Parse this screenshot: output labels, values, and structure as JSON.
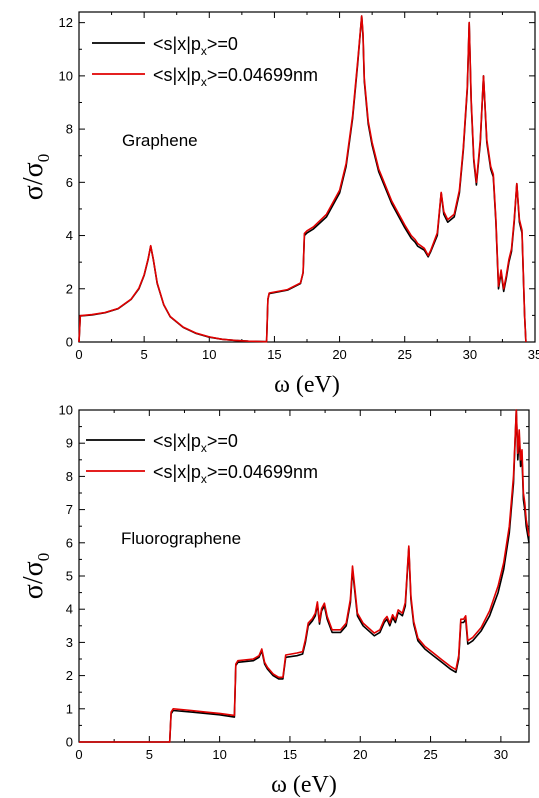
{
  "chart_data": [
    {
      "type": "line",
      "annotation": "Graphene",
      "xlabel": "ω (eV)",
      "ylabel": "σ/σ",
      "ylabel_subscript": "0",
      "xlim": [
        0,
        35
      ],
      "ylim": [
        0,
        12.4
      ],
      "xticks": [
        0,
        5,
        10,
        15,
        20,
        25,
        30,
        35
      ],
      "yticks": [
        0,
        2,
        4,
        6,
        8,
        10,
        12
      ],
      "legend_position": "top-left",
      "grid": false,
      "series": [
        {
          "name": "<s|x|p",
          "name_subscript": "x",
          "name_suffix": ">=0",
          "color": "#000000",
          "x": [
            0,
            0.1,
            1,
            2,
            3,
            4,
            4.6,
            5,
            5.3,
            5.5,
            5.7,
            6,
            6.5,
            7,
            8,
            9,
            10,
            11,
            12,
            13,
            14,
            14.4,
            14.5,
            14.6,
            16,
            17,
            17.2,
            17.3,
            17.5,
            18,
            19,
            20,
            20.5,
            21,
            21.4,
            21.7,
            21.8,
            21.9,
            22.2,
            22.5,
            23,
            24,
            25,
            25.5,
            25.8,
            26,
            26.5,
            26.8,
            27,
            27.5,
            27.8,
            28,
            28.3,
            28.8,
            29.2,
            29.5,
            29.8,
            29.95,
            30.1,
            30.3,
            30.5,
            30.8,
            31.05,
            31.3,
            31.6,
            31.8,
            32.0,
            32.2,
            32.4,
            32.6,
            32.8,
            33.0,
            33.2,
            33.4,
            33.6,
            33.8,
            34.0,
            34.2,
            34.3
          ],
          "y": [
            0,
            0.98,
            1.02,
            1.1,
            1.25,
            1.6,
            2.0,
            2.5,
            3.1,
            3.6,
            3.1,
            2.2,
            1.4,
            0.95,
            0.55,
            0.32,
            0.18,
            0.1,
            0.06,
            0.03,
            0.02,
            0.01,
            1.6,
            1.82,
            1.95,
            2.2,
            2.6,
            4.0,
            4.1,
            4.25,
            4.7,
            5.6,
            6.6,
            8.4,
            10.5,
            12.25,
            11.5,
            9.8,
            8.2,
            7.4,
            6.4,
            5.2,
            4.3,
            3.9,
            3.75,
            3.6,
            3.45,
            3.2,
            3.4,
            4.0,
            5.6,
            4.8,
            4.5,
            4.7,
            5.6,
            7.2,
            9.5,
            12.0,
            9.0,
            6.8,
            5.9,
            7.5,
            10.0,
            7.5,
            6.5,
            6.2,
            4.5,
            2.0,
            2.6,
            1.9,
            2.4,
            3.0,
            3.4,
            4.5,
            5.95,
            4.5,
            4.1,
            1.0,
            0.0
          ]
        },
        {
          "name": "<s|x|p",
          "name_subscript": "x",
          "name_suffix": ">=0.04699nm",
          "color": "#e00000",
          "x": [
            0,
            0.1,
            1,
            2,
            3,
            4,
            4.6,
            5,
            5.3,
            5.5,
            5.7,
            6,
            6.5,
            7,
            8,
            9,
            10,
            11,
            12,
            13,
            14,
            14.4,
            14.5,
            14.6,
            16,
            17,
            17.2,
            17.3,
            17.5,
            18,
            19,
            20,
            20.5,
            21,
            21.4,
            21.7,
            21.8,
            21.9,
            22.2,
            22.5,
            23,
            24,
            25,
            25.5,
            25.8,
            26,
            26.5,
            26.8,
            27,
            27.5,
            27.8,
            28,
            28.3,
            28.8,
            29.2,
            29.5,
            29.8,
            29.95,
            30.1,
            30.3,
            30.5,
            30.8,
            31.05,
            31.3,
            31.6,
            31.8,
            32.0,
            32.2,
            32.4,
            32.6,
            32.8,
            33.0,
            33.2,
            33.4,
            33.6,
            33.8,
            34.0,
            34.2,
            34.3
          ],
          "y": [
            0,
            0.99,
            1.03,
            1.11,
            1.26,
            1.61,
            2.02,
            2.52,
            3.12,
            3.62,
            3.12,
            2.22,
            1.41,
            0.96,
            0.56,
            0.33,
            0.19,
            0.1,
            0.06,
            0.03,
            0.02,
            0.01,
            1.62,
            1.84,
            1.97,
            2.22,
            2.62,
            4.08,
            4.18,
            4.33,
            4.8,
            5.7,
            6.7,
            8.5,
            10.6,
            12.25,
            11.6,
            9.9,
            8.3,
            7.5,
            6.5,
            5.3,
            4.4,
            4.0,
            3.85,
            3.7,
            3.52,
            3.25,
            3.45,
            4.1,
            5.62,
            4.9,
            4.6,
            4.8,
            5.7,
            7.3,
            9.6,
            12.0,
            9.1,
            6.9,
            6.0,
            7.6,
            10.0,
            7.6,
            6.6,
            6.3,
            4.6,
            2.1,
            2.7,
            2.0,
            2.5,
            3.1,
            3.5,
            4.6,
            5.95,
            4.6,
            4.2,
            1.0,
            0.0
          ]
        }
      ]
    },
    {
      "type": "line",
      "annotation": "Fluorographene",
      "xlabel": "ω (eV)",
      "ylabel": "σ/σ",
      "ylabel_subscript": "0",
      "xlim": [
        0,
        32
      ],
      "ylim": [
        0,
        10
      ],
      "xticks": [
        0,
        5,
        10,
        15,
        20,
        25,
        30
      ],
      "yticks": [
        0,
        1,
        2,
        3,
        4,
        5,
        6,
        7,
        8,
        9,
        10
      ],
      "legend_position": "top-left",
      "grid": false,
      "series": [
        {
          "name": "<s|x|p",
          "name_subscript": "x",
          "name_suffix": ">=0",
          "color": "#000000",
          "x": [
            0,
            6.45,
            6.55,
            6.7,
            8,
            9,
            10,
            11.05,
            11.15,
            11.3,
            12.4,
            12.8,
            13.0,
            13.2,
            13.4,
            13.8,
            14.2,
            14.5,
            14.7,
            15.5,
            15.9,
            16.1,
            16.3,
            16.6,
            16.8,
            16.95,
            17.1,
            17.25,
            17.45,
            17.65,
            18,
            18.6,
            19.0,
            19.3,
            19.45,
            19.6,
            19.8,
            20.2,
            20.6,
            21.0,
            21.4,
            21.7,
            21.9,
            22.1,
            22.3,
            22.5,
            22.7,
            23.0,
            23.2,
            23.45,
            23.6,
            23.8,
            24.1,
            24.6,
            25.2,
            25.8,
            26.4,
            26.8,
            27.0,
            27.15,
            27.35,
            27.5,
            27.65,
            28,
            28.6,
            29.2,
            29.8,
            30.2,
            30.6,
            30.9,
            31.1,
            31.2,
            31.3,
            31.4,
            31.5,
            31.6,
            31.7,
            31.8,
            32.0
          ],
          "y": [
            0,
            0,
            0.85,
            0.95,
            0.9,
            0.86,
            0.82,
            0.75,
            2.3,
            2.4,
            2.45,
            2.55,
            2.75,
            2.35,
            2.2,
            2.0,
            1.9,
            1.9,
            2.55,
            2.6,
            2.65,
            3.0,
            3.5,
            3.65,
            3.8,
            4.15,
            3.55,
            3.95,
            4.1,
            3.7,
            3.3,
            3.3,
            3.5,
            4.2,
            5.2,
            4.6,
            3.8,
            3.5,
            3.35,
            3.2,
            3.3,
            3.6,
            3.7,
            3.5,
            3.75,
            3.6,
            3.9,
            3.8,
            4.1,
            5.85,
            4.3,
            3.55,
            3.05,
            2.8,
            2.6,
            2.4,
            2.2,
            2.1,
            2.5,
            3.6,
            3.6,
            3.7,
            2.95,
            3.05,
            3.35,
            3.8,
            4.5,
            5.2,
            6.3,
            7.8,
            10.0,
            8.5,
            9.2,
            8.3,
            8.6,
            7.3,
            7.0,
            6.5,
            6.0
          ]
        },
        {
          "name": "<s|x|p",
          "name_subscript": "x",
          "name_suffix": ">=0.04699nm",
          "color": "#e00000",
          "x": [
            0,
            6.45,
            6.55,
            6.7,
            8,
            9,
            10,
            11.05,
            11.15,
            11.3,
            12.4,
            12.8,
            13.0,
            13.2,
            13.4,
            13.8,
            14.2,
            14.5,
            14.7,
            15.5,
            15.9,
            16.1,
            16.3,
            16.6,
            16.8,
            16.95,
            17.1,
            17.25,
            17.45,
            17.65,
            18,
            18.6,
            19.0,
            19.3,
            19.45,
            19.6,
            19.8,
            20.2,
            20.6,
            21.0,
            21.4,
            21.7,
            21.9,
            22.1,
            22.3,
            22.5,
            22.7,
            23.0,
            23.2,
            23.45,
            23.6,
            23.8,
            24.1,
            24.6,
            25.2,
            25.8,
            26.4,
            26.8,
            27.0,
            27.15,
            27.35,
            27.5,
            27.65,
            28,
            28.6,
            29.2,
            29.8,
            30.2,
            30.6,
            30.9,
            31.1,
            31.2,
            31.3,
            31.4,
            31.5,
            31.6,
            31.7,
            31.8,
            32.0
          ],
          "y": [
            0,
            0,
            0.9,
            1.0,
            0.95,
            0.9,
            0.86,
            0.8,
            2.35,
            2.45,
            2.5,
            2.6,
            2.8,
            2.4,
            2.25,
            2.05,
            1.95,
            1.95,
            2.62,
            2.68,
            2.72,
            3.08,
            3.58,
            3.72,
            3.88,
            4.22,
            3.62,
            4.02,
            4.18,
            3.78,
            3.38,
            3.38,
            3.58,
            4.3,
            5.3,
            4.7,
            3.88,
            3.58,
            3.43,
            3.28,
            3.38,
            3.68,
            3.78,
            3.58,
            3.83,
            3.68,
            3.98,
            3.88,
            4.2,
            5.9,
            4.4,
            3.63,
            3.13,
            2.88,
            2.68,
            2.48,
            2.28,
            2.18,
            2.6,
            3.7,
            3.7,
            3.8,
            3.05,
            3.15,
            3.45,
            3.95,
            4.7,
            5.4,
            6.5,
            8.0,
            10.0,
            8.7,
            9.4,
            8.5,
            8.8,
            7.5,
            7.2,
            6.7,
            6.2
          ]
        }
      ]
    }
  ]
}
